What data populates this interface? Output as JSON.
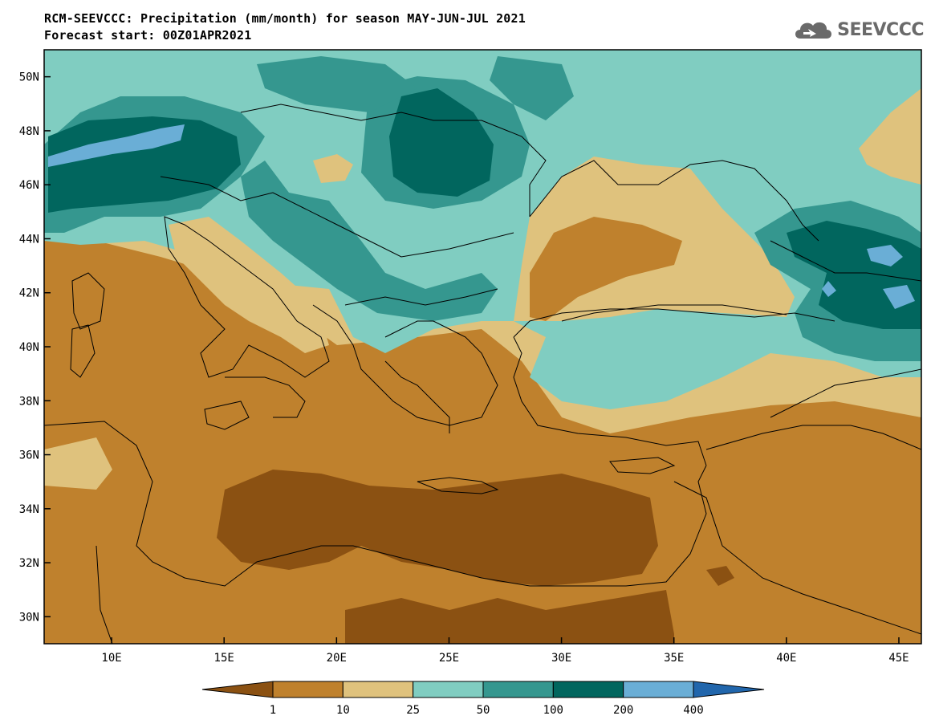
{
  "header": {
    "title_line1": "RCM-SEEVCCC: Precipitation (mm/month) for season MAY-JUN-JUL 2021",
    "title_line2": "Forecast start: 00Z01APR2021",
    "logo_text": "SEEVCCC"
  },
  "map": {
    "lon_range": [
      7,
      46
    ],
    "lat_range": [
      29,
      51
    ],
    "lat_ticks": [
      "30N",
      "32N",
      "34N",
      "36N",
      "38N",
      "40N",
      "42N",
      "44N",
      "46N",
      "48N",
      "50N"
    ],
    "lon_ticks": [
      "10E",
      "15E",
      "20E",
      "25E",
      "30E",
      "35E",
      "40E",
      "45E"
    ]
  },
  "legend": {
    "levels": [
      "1",
      "10",
      "25",
      "50",
      "100",
      "200",
      "400"
    ],
    "colors": [
      "#8b5112",
      "#bf812d",
      "#dfc27d",
      "#80cdc1",
      "#35978f",
      "#01665e",
      "#6aaed6",
      "#2166ac"
    ]
  }
}
